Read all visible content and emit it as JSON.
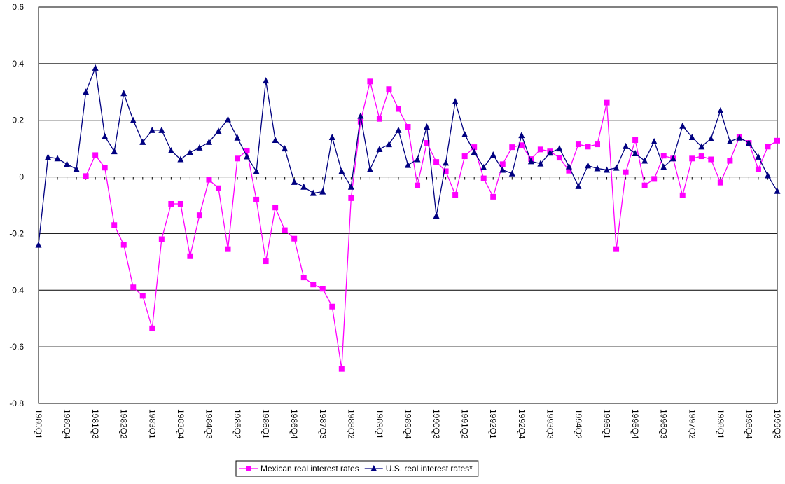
{
  "chart_data": {
    "type": "line",
    "categories": [
      "1980Q1",
      null,
      null,
      "1980Q4",
      null,
      null,
      "1981Q3",
      null,
      null,
      "1982Q2",
      null,
      null,
      "1983Q1",
      null,
      null,
      "1983Q4",
      null,
      null,
      "1984Q3",
      null,
      null,
      "1985Q2",
      null,
      null,
      "1986Q1",
      null,
      null,
      "1986Q4",
      null,
      null,
      "1987Q3",
      null,
      null,
      "1988Q2",
      null,
      null,
      "1989Q1",
      null,
      null,
      "1989Q4",
      null,
      null,
      "1990Q3",
      null,
      null,
      "1991Q2",
      null,
      null,
      "1992Q1",
      null,
      null,
      "1992Q4",
      null,
      null,
      "1993Q3",
      null,
      null,
      "1994Q2",
      null,
      null,
      "1995Q1",
      null,
      null,
      "1995Q4",
      null,
      null,
      "1996Q3",
      null,
      null,
      "1997Q2",
      null,
      null,
      "1998Q1",
      null,
      null,
      "1998Q4",
      null,
      null,
      "1999Q3"
    ],
    "series": [
      {
        "name": "Mexican real interest rates",
        "color": "#ff00ff",
        "marker": "square",
        "values": [
          null,
          null,
          null,
          null,
          null,
          0.003,
          0.077,
          0.033,
          -0.17,
          -0.24,
          -0.39,
          -0.42,
          -0.535,
          -0.22,
          -0.095,
          -0.095,
          -0.28,
          -0.135,
          -0.01,
          -0.04,
          -0.255,
          0.065,
          0.093,
          -0.08,
          -0.298,
          -0.108,
          -0.188,
          -0.218,
          -0.355,
          -0.38,
          -0.395,
          -0.458,
          -0.678,
          -0.075,
          0.195,
          0.337,
          0.205,
          0.31,
          0.24,
          0.177,
          -0.03,
          0.12,
          0.053,
          0.02,
          -0.063,
          0.073,
          0.105,
          -0.005,
          -0.07,
          0.045,
          0.105,
          0.112,
          0.063,
          0.097,
          0.09,
          0.068,
          0.022,
          0.115,
          0.107,
          0.115,
          0.262,
          -0.255,
          0.017,
          0.13,
          -0.03,
          -0.007,
          0.075,
          0.065,
          -0.065,
          0.065,
          0.073,
          0.062,
          -0.02,
          0.057,
          0.14,
          0.12,
          0.027,
          0.107,
          0.128
        ]
      },
      {
        "name": "U.S. real interest rates*",
        "color": "#000080",
        "marker": "triangle",
        "values": [
          -0.24,
          0.07,
          0.065,
          0.045,
          0.028,
          0.3,
          0.385,
          0.143,
          0.09,
          0.295,
          0.2,
          0.123,
          0.165,
          0.165,
          0.093,
          0.062,
          0.087,
          0.103,
          0.123,
          0.162,
          0.203,
          0.138,
          0.072,
          0.02,
          0.34,
          0.13,
          0.1,
          -0.018,
          -0.035,
          -0.057,
          -0.052,
          0.14,
          0.02,
          -0.035,
          0.215,
          0.027,
          0.098,
          0.115,
          0.165,
          0.042,
          0.062,
          0.177,
          -0.137,
          0.05,
          0.266,
          0.15,
          0.088,
          0.034,
          0.078,
          0.025,
          0.012,
          0.147,
          0.055,
          0.047,
          0.085,
          0.1,
          0.037,
          -0.033,
          0.04,
          0.03,
          0.025,
          0.032,
          0.108,
          0.083,
          0.057,
          0.125,
          0.035,
          0.065,
          0.18,
          0.14,
          0.107,
          0.135,
          0.234,
          0.125,
          0.138,
          0.12,
          0.071,
          0.005,
          -0.05
        ]
      }
    ],
    "ylim": [
      -0.8,
      0.6
    ],
    "yticks": [
      -0.8,
      -0.6,
      -0.4,
      -0.2,
      0,
      0.2,
      0.4,
      0.6
    ],
    "grid": true,
    "legend": "bottom"
  }
}
